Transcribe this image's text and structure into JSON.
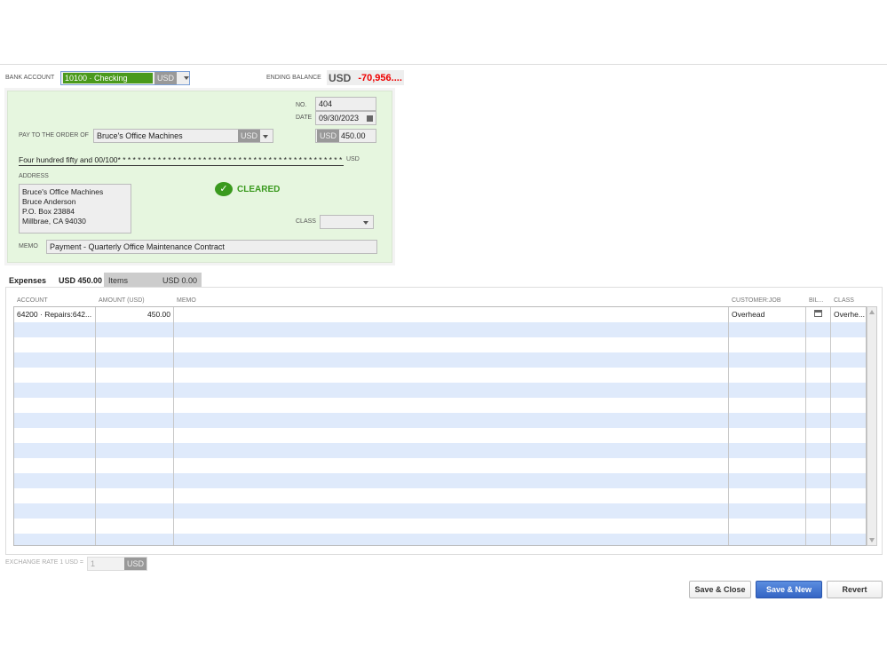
{
  "header": {
    "bank_account_label": "BANK ACCOUNT",
    "bank_account_value": "10100 · Checking",
    "bank_currency": "USD",
    "ending_balance_label": "ENDING BALANCE",
    "ending_balance_currency": "USD",
    "ending_balance_value": "-70,956...."
  },
  "check": {
    "no_label": "NO.",
    "no_value": "404",
    "date_label": "DATE",
    "date_value": "09/30/2023",
    "pay_to_label": "PAY TO THE ORDER OF",
    "payee": "Bruce's Office Machines",
    "payee_currency": "USD",
    "amount_currency": "USD",
    "amount": "450.00",
    "amount_words": "Four hundred fifty and 00/100* * * * * * * * * * * * * * * * * * * * * * * * * * * * * * * * * * * * * * * * * * * * * * *",
    "words_currency": "USD",
    "address_label": "ADDRESS",
    "address_lines": [
      "Bruce's Office Machines",
      "Bruce Anderson",
      "P.O. Box 23884",
      "Millbrae, CA 94030"
    ],
    "status": "CLEARED",
    "status_color": "#3a9a1e",
    "class_label": "CLASS",
    "class_value": "",
    "memo_label": "MEMO",
    "memo_value": "Payment - Quarterly Office Maintenance Contract"
  },
  "tabs": [
    {
      "label": "Expenses",
      "amount": "USD 450.00"
    },
    {
      "label": "Items",
      "amount": "USD 0.00"
    }
  ],
  "table": {
    "columns": [
      "ACCOUNT",
      "AMOUNT (USD)",
      "MEMO",
      "CUSTOMER:JOB",
      "BIL...",
      "CLASS"
    ],
    "rows": [
      {
        "account": "64200 · Repairs:642...",
        "amount": "450.00",
        "memo": "",
        "customer_job": "Overhead",
        "billable_icon": "billable-icon",
        "class": "Overhe..."
      }
    ]
  },
  "footer": {
    "exchange_label": "EXCHANGE RATE 1 USD =",
    "exchange_value": "1",
    "exchange_currency": "USD",
    "save_close": "Save & Close",
    "save_new": "Save & New",
    "revert": "Revert"
  }
}
